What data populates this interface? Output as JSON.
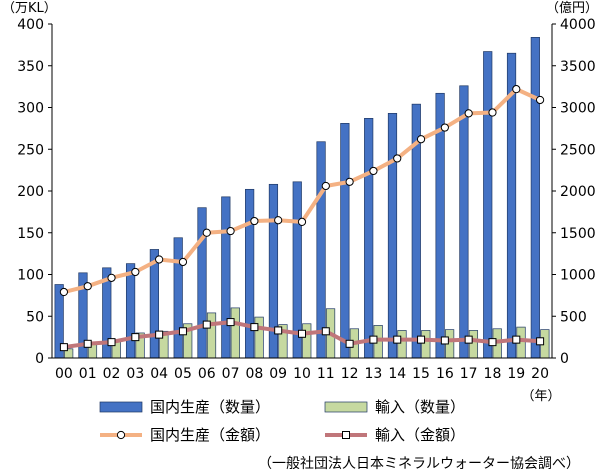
{
  "chart_data": {
    "type": "bar",
    "categories": [
      "00",
      "01",
      "02",
      "03",
      "04",
      "05",
      "06",
      "07",
      "08",
      "09",
      "10",
      "11",
      "12",
      "13",
      "14",
      "15",
      "16",
      "17",
      "18",
      "19",
      "20"
    ],
    "y_left_unit": "（万KL）",
    "y_right_unit": "（億円）",
    "x_unit": "（年）",
    "ylim_left": [
      0,
      400
    ],
    "yticks_left": [
      "0",
      "50",
      "100",
      "150",
      "200",
      "250",
      "300",
      "350",
      "400"
    ],
    "ylim_right": [
      0,
      4000
    ],
    "yticks_right": [
      "0",
      "500",
      "1000",
      "1500",
      "2000",
      "2500",
      "3000",
      "3500",
      "4000"
    ],
    "grid": false,
    "legend_position": "bottom",
    "series": [
      {
        "name": "国内生産（数量）",
        "kind": "bar",
        "axis": "left",
        "color": "#4472c4",
        "values": [
          88,
          102,
          108,
          113,
          130,
          144,
          180,
          193,
          202,
          208,
          211,
          259,
          281,
          287,
          293,
          304,
          317,
          326,
          367,
          365,
          384
        ]
      },
      {
        "name": "輸入（数量）",
        "kind": "bar",
        "axis": "left",
        "color": "#c6d9a0",
        "values": [
          11,
          18,
          20,
          30,
          32,
          41,
          54,
          60,
          49,
          40,
          41,
          59,
          35,
          39,
          33,
          33,
          34,
          33,
          35,
          37,
          34
        ]
      },
      {
        "name": "国内生産（金額）",
        "kind": "line",
        "axis": "right",
        "color": "#f4b183",
        "values": [
          790,
          860,
          960,
          1030,
          1180,
          1150,
          1500,
          1520,
          1640,
          1650,
          1630,
          2060,
          2110,
          2240,
          2390,
          2620,
          2760,
          2930,
          2940,
          3220,
          3090
        ]
      },
      {
        "name": "輸入（金額）",
        "kind": "line",
        "axis": "right",
        "color": "#c0767a",
        "values": [
          130,
          170,
          190,
          250,
          280,
          320,
          400,
          430,
          370,
          330,
          290,
          320,
          170,
          220,
          220,
          220,
          210,
          220,
          190,
          220,
          200
        ]
      }
    ],
    "source": "（一般社団法人日本ミネラルウォーター協会調べ）"
  }
}
